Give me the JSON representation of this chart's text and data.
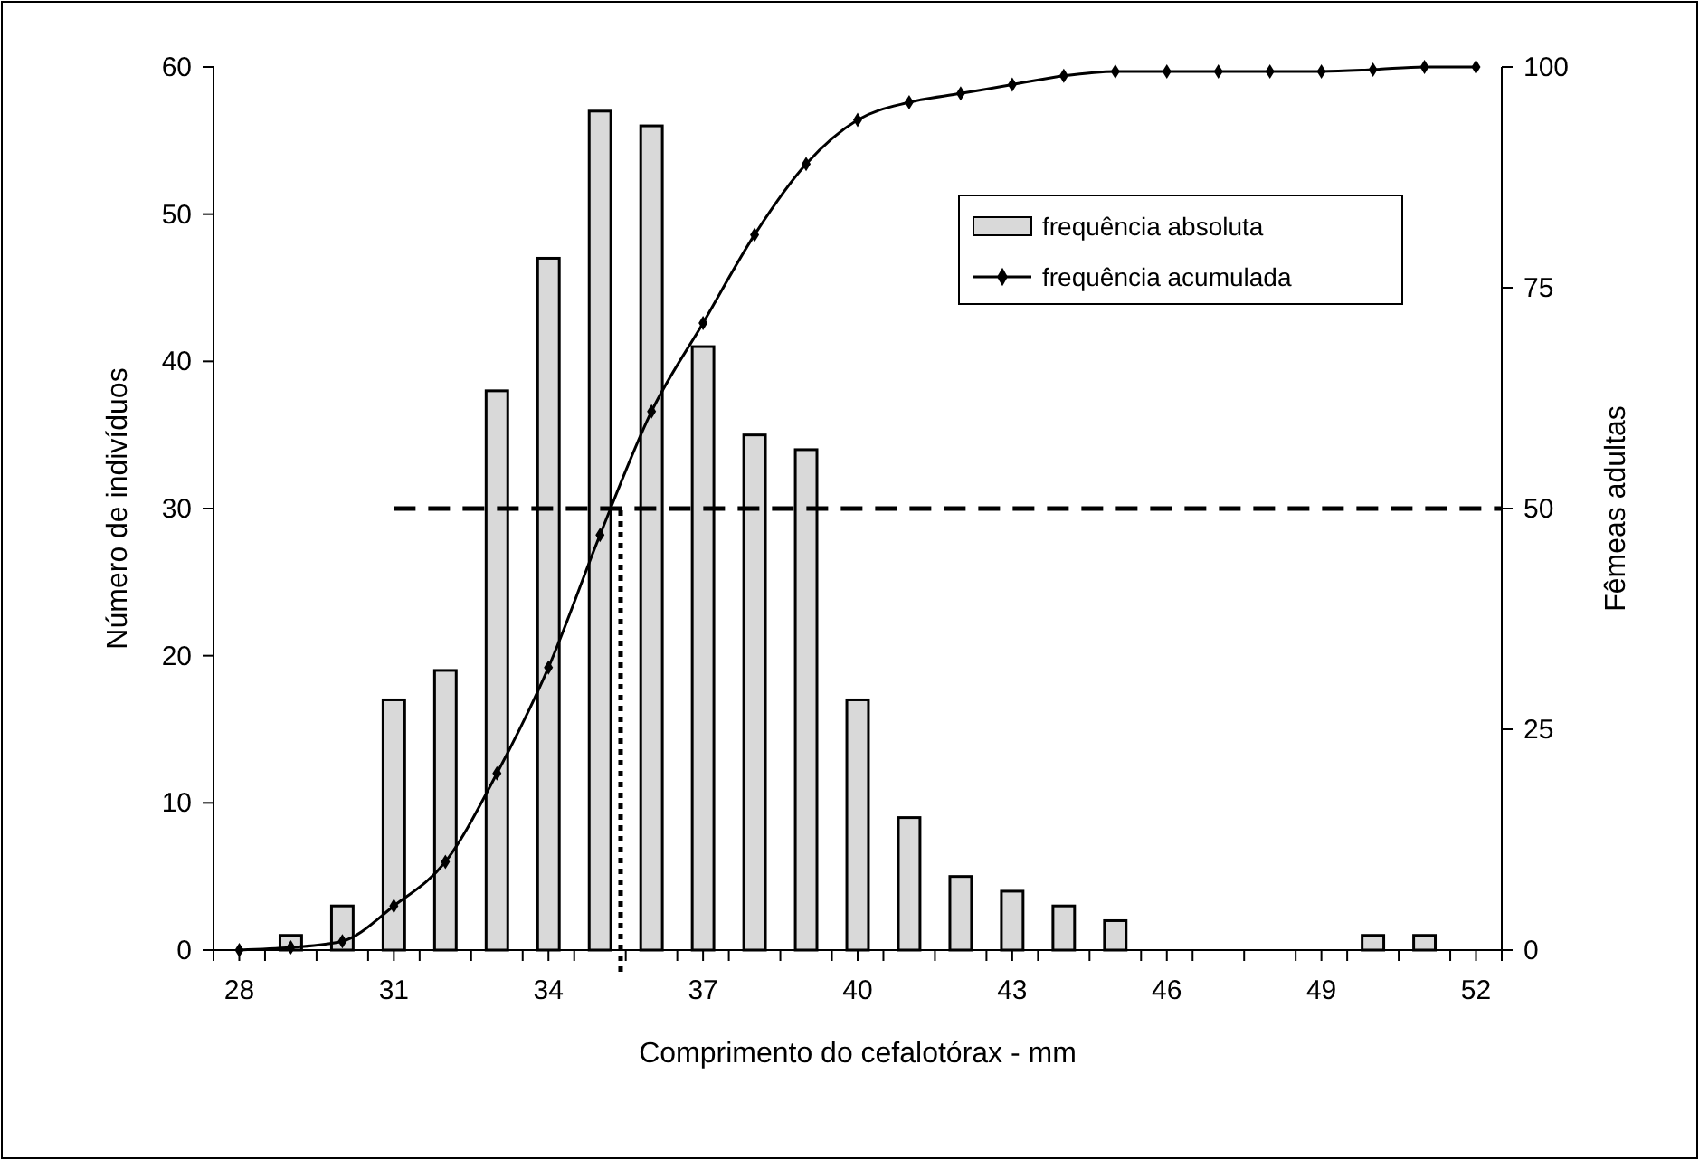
{
  "chart_data": {
    "type": "bar",
    "xlabel": "Comprimento do cefalotórax - mm",
    "ylabel": "Número de indivíduos",
    "y2label": "Fêmeas adultas",
    "x": [
      28,
      29,
      30,
      31,
      32,
      33,
      34,
      35,
      36,
      37,
      38,
      39,
      40,
      41,
      42,
      43,
      44,
      45,
      46,
      47,
      48,
      49,
      50,
      51,
      52
    ],
    "series": [
      {
        "name": "frequência absoluta",
        "color": "#d9d9d9",
        "values": [
          0,
          1,
          3,
          17,
          19,
          38,
          47,
          57,
          56,
          41,
          35,
          34,
          17,
          9,
          5,
          4,
          3,
          2,
          0,
          0,
          0,
          0,
          1,
          1,
          0
        ]
      },
      {
        "name": "frequência acumulada",
        "type": "line",
        "axis": "y2",
        "color": "#000000",
        "marker": "diamond",
        "values": [
          0,
          0.3,
          1,
          5,
          10,
          20,
          32,
          47,
          61,
          71,
          81,
          89,
          94,
          96,
          97,
          98,
          99,
          99.5,
          99.5,
          99.5,
          99.5,
          99.5,
          99.7,
          100,
          100
        ]
      }
    ],
    "xlim": [
      27.5,
      52.5
    ],
    "xticks": [
      28,
      31,
      34,
      37,
      40,
      43,
      46,
      49,
      52,
      {
        "value": 27.5,
        "label": null
      },
      {
        "value": 28.5,
        "label": null
      },
      {
        "value": 29.5,
        "label": null
      },
      {
        "value": 30.5,
        "label": null
      },
      {
        "value": 31.5,
        "label": null
      },
      {
        "value": 32.5,
        "label": null
      },
      {
        "value": 33.5,
        "label": null
      },
      {
        "value": 34.5,
        "label": null
      },
      {
        "value": 35.5,
        "label": null
      },
      {
        "value": 36.5,
        "label": null
      },
      {
        "value": 37.5,
        "label": null
      },
      {
        "value": 38.5,
        "label": null
      },
      {
        "value": 39.5,
        "label": null
      },
      {
        "value": 40.5,
        "label": null
      },
      {
        "value": 41.5,
        "label": null
      },
      {
        "value": 42.5,
        "label": null
      },
      {
        "value": 43.5,
        "label": null
      },
      {
        "value": 44.5,
        "label": null
      },
      {
        "value": 45.5,
        "label": null
      },
      {
        "value": 46.5,
        "label": null
      },
      {
        "value": 47.5,
        "label": null
      },
      {
        "value": 48.5,
        "label": null
      },
      {
        "value": 49.5,
        "label": null
      },
      {
        "value": 50.5,
        "label": null
      },
      {
        "value": 51.5,
        "label": null
      },
      {
        "value": 52.5,
        "label": null
      }
    ],
    "ylim": [
      0,
      60
    ],
    "yticks": [
      0,
      10,
      20,
      30,
      40,
      50,
      60
    ],
    "y2lim": [
      0,
      100
    ],
    "y2ticks": [
      0,
      25,
      50,
      75,
      100
    ],
    "ref_lines": [
      {
        "axis": "y2",
        "value": 50,
        "line_style": "dashed",
        "color": "#000000"
      },
      {
        "axis": "x",
        "value": 35.4,
        "line_style": "dotted",
        "color": "#000000"
      }
    ],
    "legend": "top right",
    "grid": false
  }
}
